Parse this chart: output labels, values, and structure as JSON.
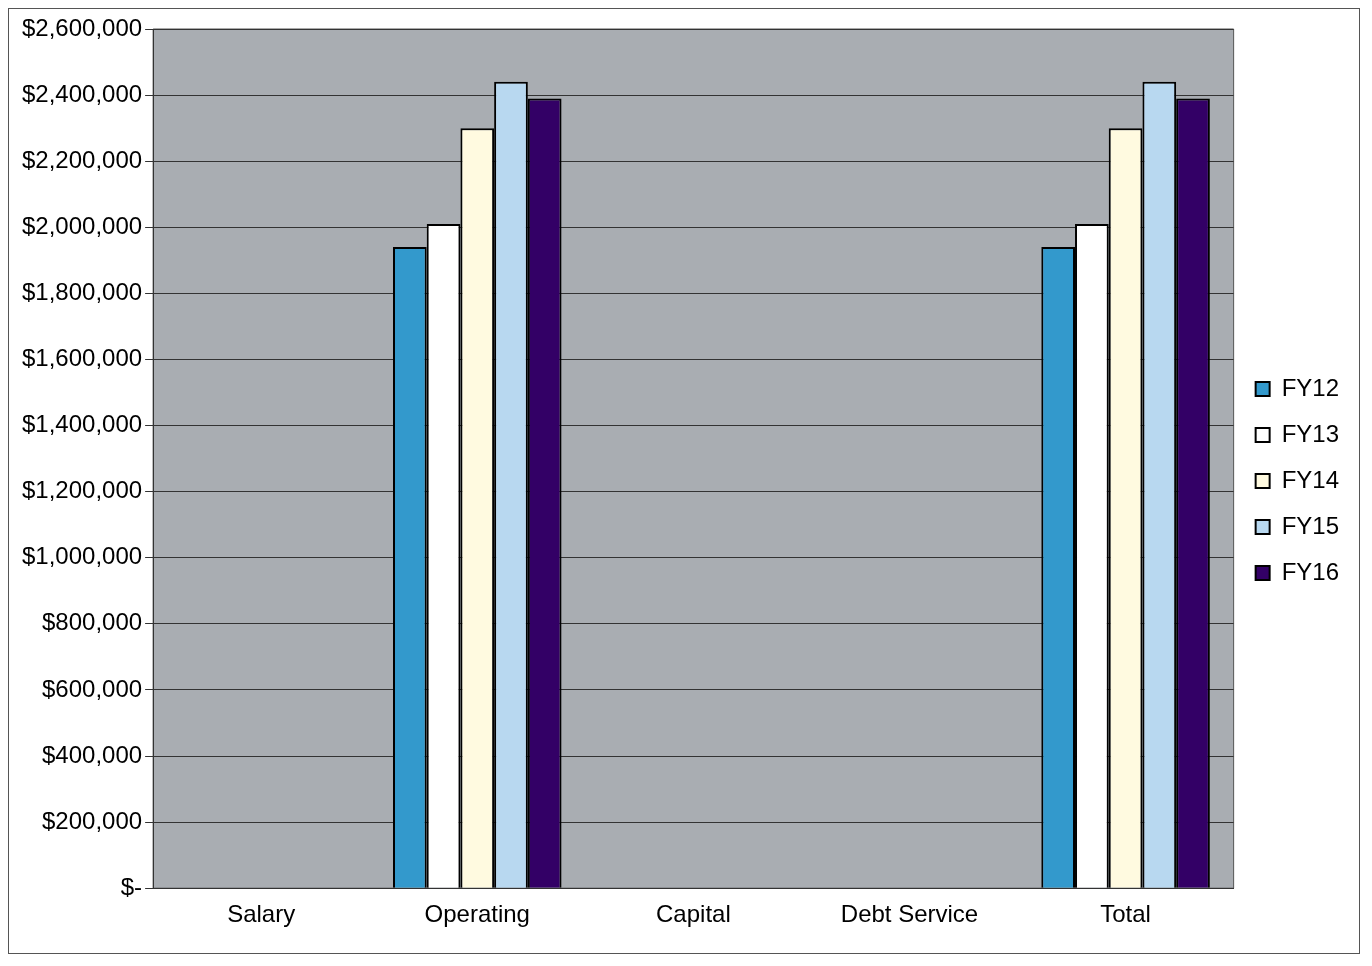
{
  "chart_data": {
    "type": "bar",
    "categories": [
      "Salary",
      "Operating",
      "Capital",
      "Debt Service",
      "Total"
    ],
    "series": [
      {
        "name": "FY12",
        "color": "#3399cc",
        "values": [
          0,
          1940000,
          0,
          0,
          1940000
        ]
      },
      {
        "name": "FY13",
        "color": "#ffffff",
        "values": [
          0,
          2010000,
          0,
          0,
          2010000
        ]
      },
      {
        "name": "FY14",
        "color": "#fffae0",
        "values": [
          0,
          2300000,
          0,
          0,
          2300000
        ]
      },
      {
        "name": "FY15",
        "color": "#b8d8f0",
        "values": [
          0,
          2440000,
          0,
          0,
          2440000
        ]
      },
      {
        "name": "FY16",
        "color": "#330066",
        "values": [
          0,
          2390000,
          0,
          0,
          2390000
        ]
      }
    ],
    "ylim": [
      0,
      2600000
    ],
    "yticks": [
      {
        "value": 0,
        "label": "$-"
      },
      {
        "value": 200000,
        "label": "$200,000"
      },
      {
        "value": 400000,
        "label": "$400,000"
      },
      {
        "value": 600000,
        "label": "$600,000"
      },
      {
        "value": 800000,
        "label": "$800,000"
      },
      {
        "value": 1000000,
        "label": "$1,000,000"
      },
      {
        "value": 1200000,
        "label": "$1,200,000"
      },
      {
        "value": 1400000,
        "label": "$1,400,000"
      },
      {
        "value": 1600000,
        "label": "$1,600,000"
      },
      {
        "value": 1800000,
        "label": "$1,800,000"
      },
      {
        "value": 2000000,
        "label": "$2,000,000"
      },
      {
        "value": 2200000,
        "label": "$2,200,000"
      },
      {
        "value": 2400000,
        "label": "$2,400,000"
      },
      {
        "value": 2600000,
        "label": "$2,600,000"
      }
    ],
    "grid": "y",
    "legend": "right"
  }
}
